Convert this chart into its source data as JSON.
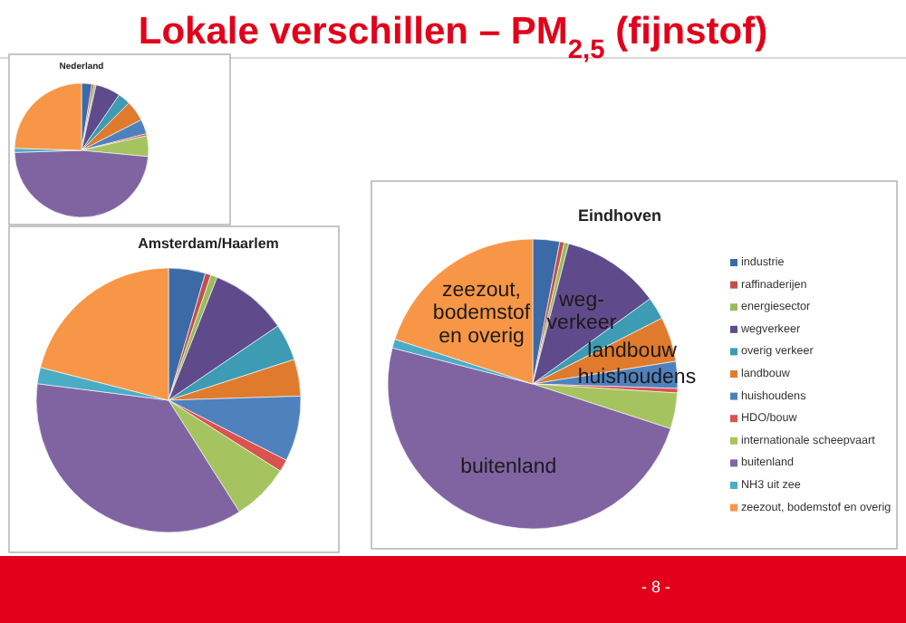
{
  "chart_data": [
    {
      "type": "pie",
      "title": "Nederland",
      "annotations": [
        "Lokale verschillen – PM$_{2,5}$ (fijnstof)"
      ],
      "categories": [
        null,
        null,
        null,
        null,
        null,
        null,
        null,
        null,
        null,
        null,
        null,
        null
      ],
      "values": [
        2.5,
        0.5,
        0.5,
        6,
        3,
        5,
        3.5,
        0.5,
        5,
        48,
        1,
        24.5
      ],
      "colors": [
        "#3c6aa6",
        "#c0504d",
        "#9bbb59",
        "#5f4b8b",
        "#3d9bb3",
        "#e07b2e",
        "#4f81bd",
        "#d9534f",
        "#a5c45f",
        "#8064a2",
        "#4bacc6",
        "#f79646"
      ]
    },
    {
      "type": "pie",
      "title": "Amsterdam/Haarlem",
      "categories": [
        null,
        null,
        null,
        null,
        null,
        null,
        null,
        null,
        null,
        null,
        null,
        null
      ],
      "values": [
        4.5,
        0.7,
        0.8,
        9.5,
        4.5,
        4.5,
        8,
        1.5,
        7,
        36,
        2,
        21
      ],
      "colors": [
        "#3c6aa6",
        "#c0504d",
        "#9bbb59",
        "#5f4b8b",
        "#3d9bb3",
        "#e07b2e",
        "#4f81bd",
        "#d9534f",
        "#a5c45f",
        "#8064a2",
        "#4bacc6",
        "#f79646"
      ]
    },
    {
      "type": "pie",
      "title": "Eindhoven",
      "legend": "right",
      "categories": [
        "industrie",
        "raffinaderijen",
        "energiesector",
        "wegverkeer",
        "overig verkeer",
        "landbouw",
        "huishoudens",
        "HDO/bouw",
        "internationale scheepvaart",
        "buitenland",
        "NH3 uit zee",
        "zeezout, bodemstof en overig"
      ],
      "values": [
        3,
        0.5,
        0.5,
        11,
        2.5,
        5,
        3,
        0.5,
        4,
        49,
        1,
        20
      ],
      "colors": [
        "#3c6aa6",
        "#c0504d",
        "#9bbb59",
        "#5f4b8b",
        "#3d9bb3",
        "#e07b2e",
        "#4f81bd",
        "#d9534f",
        "#a5c45f",
        "#8064a2",
        "#4bacc6",
        "#f79646"
      ],
      "annotations": [
        {
          "text": "zeezout, bodemstof en overig",
          "x": "zeezout, bodemstof en overig"
        },
        {
          "text": "weg-verkeer",
          "x": "wegverkeer"
        },
        {
          "text": "landbouw",
          "x": "landbouw"
        },
        {
          "text": "huishoudens",
          "x": "huishoudens"
        },
        {
          "text": "buitenland",
          "x": "buitenland"
        },
        "- 8 -"
      ]
    }
  ]
}
